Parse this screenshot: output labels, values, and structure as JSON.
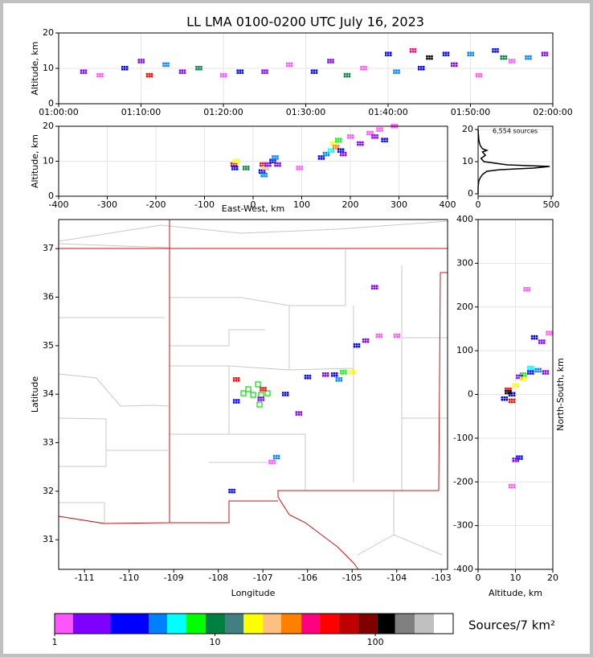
{
  "chart_data": [
    {
      "type": "scatter",
      "title": "LL LMA 0100-0200 UTC July 16, 2023",
      "ylabel": "Altitude, km",
      "xlim": [
        0,
        60
      ],
      "ylim": [
        0,
        20
      ],
      "grid": true,
      "xticks": [
        {
          "value": 0,
          "label": "01:00:00"
        },
        {
          "value": 10,
          "label": "01:10:00"
        },
        {
          "value": 20,
          "label": "01:20:00"
        },
        {
          "value": 30,
          "label": "01:30:00"
        },
        {
          "value": 40,
          "label": "01:40:00"
        },
        {
          "value": 50,
          "label": "01:50:00"
        },
        {
          "value": 60,
          "label": "02:00:00"
        }
      ],
      "yticks": [
        0,
        10,
        20
      ],
      "x": [
        3,
        5,
        8,
        10,
        11,
        13,
        15,
        17,
        20,
        22,
        25,
        28,
        31,
        33,
        35,
        37,
        40,
        41,
        43,
        44,
        45,
        47,
        48,
        50,
        51,
        53,
        54,
        55,
        57,
        59
      ],
      "y": [
        9,
        8,
        10,
        12,
        8,
        11,
        9,
        10,
        8,
        9,
        9,
        11,
        9,
        12,
        8,
        10,
        14,
        9,
        15,
        10,
        13,
        14,
        11,
        14,
        8,
        15,
        13,
        12,
        13,
        14
      ],
      "colors": [
        "#8000ff",
        "#ff55ff",
        "#0000ff",
        "#8000ff",
        "#ff0000",
        "#0080ff",
        "#8000ff",
        "#008040",
        "#ff55ff",
        "#0000ff",
        "#8000ff",
        "#ff55ff",
        "#0000ff",
        "#8000ff",
        "#008040",
        "#ff55ff",
        "#0000ff",
        "#0080ff",
        "#ff0080",
        "#0000ff",
        "#000000",
        "#0000ff",
        "#8000ff",
        "#0080ff",
        "#ff55ff",
        "#0000ff",
        "#008040",
        "#ff55ff",
        "#0080ff",
        "#8000ff"
      ]
    },
    {
      "type": "scatter",
      "xlabel": "East-West, km",
      "ylabel": "Altitude, km",
      "xlim": [
        -400,
        400
      ],
      "ylim": [
        0,
        20
      ],
      "grid": true,
      "xticks": [
        -400,
        -300,
        -200,
        -100,
        0,
        100,
        200,
        300,
        400
      ],
      "yticks": [
        0,
        10,
        20
      ],
      "x": [
        -40,
        -38,
        -35,
        -15,
        18,
        20,
        22,
        25,
        30,
        40,
        45,
        50,
        95,
        140,
        150,
        160,
        165,
        170,
        175,
        180,
        185,
        200,
        220,
        240,
        250,
        260,
        270,
        290
      ],
      "y": [
        9,
        8,
        10,
        8,
        7,
        9,
        6,
        8,
        9,
        10,
        11,
        9,
        8,
        11,
        12,
        13,
        15,
        14,
        16,
        13,
        12,
        17,
        15,
        18,
        17,
        19,
        16,
        20
      ],
      "colors": [
        "#ff0000",
        "#0000ff",
        "#ffff00",
        "#008040",
        "#0000ff",
        "#ff0000",
        "#0080ff",
        "#ffc080",
        "#8000ff",
        "#0000ff",
        "#0080ff",
        "#8000ff",
        "#ff55ff",
        "#0000ff",
        "#0080ff",
        "#00ffff",
        "#ffff00",
        "#ff8000",
        "#00ff00",
        "#0000ff",
        "#8000ff",
        "#ff55ff",
        "#8000ff",
        "#ff55ff",
        "#8000ff",
        "#ff55ff",
        "#0000ff",
        "#ff55ff"
      ]
    },
    {
      "type": "line",
      "annotation": "6,554 sources",
      "xlim": [
        0,
        511
      ],
      "ylim": [
        -0.75,
        21
      ],
      "grid": true,
      "xticks": [
        0,
        500
      ],
      "yticks": [
        0,
        10,
        20
      ],
      "x": [
        0,
        0,
        5,
        15,
        30,
        60,
        150,
        380,
        490,
        200,
        40,
        20,
        50,
        30,
        60,
        30,
        15,
        8,
        5,
        3,
        1,
        0
      ],
      "y": [
        0,
        2,
        4,
        5,
        6,
        7,
        7.5,
        8,
        8.5,
        9,
        10,
        11,
        12,
        13,
        13.5,
        14,
        15,
        16,
        17,
        18,
        19,
        20
      ]
    },
    {
      "type": "scatter",
      "xlabel": "Longitude",
      "ylabel": "Latitude",
      "xlim": [
        -111.58,
        -102.86
      ],
      "ylim": [
        30.39,
        37.6
      ],
      "grid": false,
      "xticks": [
        -111,
        -110,
        -109,
        -108,
        -107,
        -106,
        -105,
        -104,
        -103
      ],
      "yticks": [
        31,
        32,
        33,
        34,
        35,
        36,
        37
      ],
      "x": [
        -107.6,
        -107.6,
        -107.0,
        -107.05,
        -106.7,
        -106.8,
        -107.7,
        -105.4,
        -105.2,
        -105.6,
        -105.3,
        -104.7,
        -104.4,
        -104.9,
        -104.0,
        -104.5,
        -106.0,
        -106.2,
        -106.5,
        -105.0
      ],
      "y": [
        34.3,
        33.85,
        34.1,
        33.9,
        32.7,
        32.6,
        32.0,
        34.4,
        34.45,
        34.4,
        34.3,
        35.1,
        35.2,
        35.0,
        35.2,
        36.2,
        34.35,
        33.6,
        34.0,
        34.45
      ],
      "colors": [
        "#ff0000",
        "#0000ff",
        "#ff0000",
        "#8000ff",
        "#0080ff",
        "#ff55ff",
        "#0000ff",
        "#0000ff",
        "#00ff00",
        "#8000ff",
        "#0080ff",
        "#8000ff",
        "#ff55ff",
        "#0000ff",
        "#ff55ff",
        "#8000ff",
        "#0000ff",
        "#8000ff",
        "#0000ff",
        "#ffff00"
      ]
    },
    {
      "type": "scatter",
      "xlabel": "Altitude, km",
      "ylabel": "North-South, km",
      "xlim": [
        0,
        20
      ],
      "ylim": [
        -400,
        400
      ],
      "grid": true,
      "xticks": [
        0,
        10,
        20
      ],
      "yticks": [
        -400,
        -300,
        -200,
        -100,
        0,
        100,
        200,
        300,
        400
      ],
      "x": [
        8,
        9,
        9,
        10,
        12,
        14,
        11,
        16,
        18,
        15,
        17,
        19,
        11,
        10,
        9,
        13,
        7,
        14,
        8,
        12
      ],
      "y": [
        10,
        0,
        -15,
        20,
        45,
        50,
        40,
        55,
        50,
        130,
        120,
        140,
        -145,
        -150,
        -210,
        240,
        -10,
        60,
        5,
        35
      ],
      "colors": [
        "#ff0000",
        "#0000ff",
        "#ff0000",
        "#ffff00",
        "#00ff00",
        "#0000ff",
        "#8000ff",
        "#0080ff",
        "#8000ff",
        "#0000ff",
        "#8000ff",
        "#ff55ff",
        "#0000ff",
        "#8000ff",
        "#ff55ff",
        "#ff55ff",
        "#0000ff",
        "#00ffff",
        "#000000",
        "#ffff00"
      ]
    },
    {
      "type": "colorbar",
      "label": "Sources/7 km²",
      "log": true,
      "xlim": [
        1,
        306
      ],
      "xticks": [
        1,
        10,
        100
      ],
      "bounds": [
        1,
        1.3,
        2.22,
        3.86,
        5.03,
        6.64,
        8.76,
        11.6,
        15.1,
        19.9,
        25.9,
        34.6,
        45.1,
        59.5,
        78.5,
        103,
        133,
        176,
        232,
        306
      ],
      "colors": [
        "#ff55ff",
        "#8000ff",
        "#0000ff",
        "#0080ff",
        "#00ffff",
        "#00ff00",
        "#008040",
        "#408080",
        "#ffff00",
        "#ffc080",
        "#ff8000",
        "#ff0080",
        "#ff0000",
        "#c00000",
        "#800000",
        "#000000",
        "#808080",
        "#c0c0c0",
        "#ffffff"
      ]
    }
  ]
}
